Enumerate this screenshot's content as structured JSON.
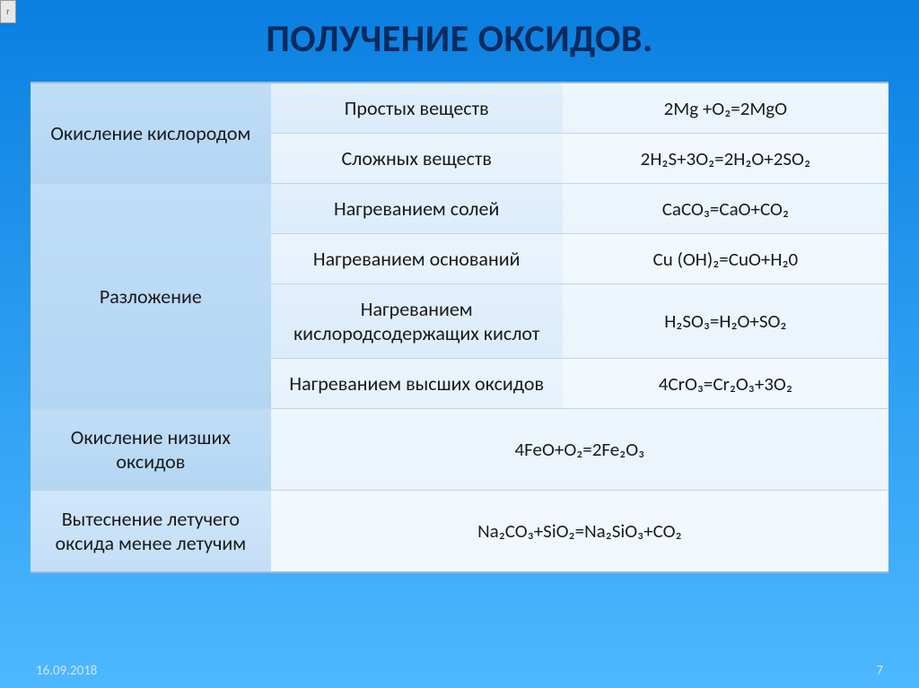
{
  "corner": "г",
  "title": "ПОЛУЧЕНИЕ ОКСИДОВ.",
  "rows": {
    "r1_method": "Окисление кислородом",
    "r1_sub": "Простых веществ",
    "r1_formula": "2Mg +O₂=2MgO",
    "r2_sub": "Сложных веществ",
    "r2_formula": "2H₂S+3O₂=2H₂O+2SO₂",
    "r3_method": "Разложение",
    "r3_sub": "Нагреванием солей",
    "r3_formula": "CaCO₃=CaO+CO₂",
    "r4_sub": "Нагреванием оснований",
    "r4_formula": "Cu (OH)₂=CuO+H₂0",
    "r5_sub": "Нагреванием кислородсодержащих кислот",
    "r5_formula": "H₂SO₃=H₂O+SO₂",
    "r6_sub": "Нагреванием высших оксидов",
    "r6_formula": "4CrO₃=Cr₂O₃+3O₂",
    "r7_method": "Окисление низших оксидов",
    "r7_formula": "4FeO+О₂=2Fe₂O₃",
    "r8_method": "Вытеснение летучего оксида менее летучим",
    "r8_formula": "Na₂CO₃+SiO₂=Na₂SiO₃+CO₂"
  },
  "footer_date": "16.09.2018",
  "footer_page": "7"
}
